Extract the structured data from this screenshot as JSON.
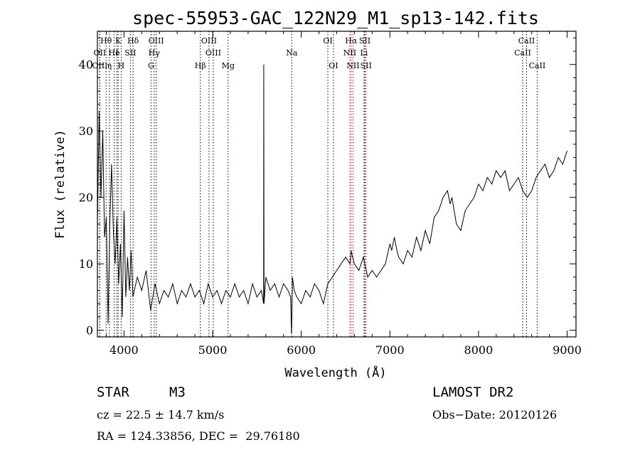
{
  "chart_data": {
    "type": "line",
    "title": "spec-55953-GAC_122N29_M1_sp13-142.fits",
    "xlabel": "Wavelength (Å)",
    "ylabel": "Flux (relative)",
    "xlim": [
      3700,
      9100
    ],
    "ylim": [
      -1,
      45
    ],
    "x_ticks": [
      4000,
      5000,
      6000,
      7000,
      8000,
      9000
    ],
    "y_ticks": [
      0,
      10,
      20,
      30,
      40
    ],
    "grid": false,
    "series": [
      {
        "x": [
          3700,
          3720,
          3740,
          3760,
          3780,
          3800,
          3820,
          3840,
          3860,
          3880,
          3900,
          3920,
          3940,
          3960,
          3980,
          4000,
          4020,
          4040,
          4060,
          4080,
          4100,
          4150,
          4200,
          4250,
          4300,
          4350,
          4400,
          4450,
          4500,
          4550,
          4600,
          4650,
          4700,
          4750,
          4800,
          4850,
          4900,
          4950,
          5000,
          5050,
          5100,
          5150,
          5200,
          5250,
          5300,
          5350,
          5400,
          5450,
          5500,
          5550,
          5575,
          5577,
          5580,
          5600,
          5650,
          5700,
          5750,
          5800,
          5850,
          5880,
          5890,
          5895,
          5900,
          5920,
          5950,
          6000,
          6050,
          6100,
          6150,
          6200,
          6250,
          6300,
          6350,
          6400,
          6450,
          6500,
          6550,
          6563,
          6580,
          6600,
          6650,
          6700,
          6750,
          6800,
          6850,
          6900,
          6950,
          7000,
          7020,
          7050,
          7080,
          7100,
          7150,
          7200,
          7250,
          7300,
          7350,
          7400,
          7450,
          7500,
          7550,
          7600,
          7650,
          7680,
          7700,
          7750,
          7800,
          7850,
          7900,
          7950,
          8000,
          8050,
          8100,
          8150,
          8200,
          8250,
          8300,
          8350,
          8400,
          8450,
          8500,
          8550,
          8600,
          8650,
          8700,
          8750,
          8800,
          8850,
          8900,
          8950,
          9000
        ],
        "y": [
          16,
          33,
          20,
          30,
          14,
          17,
          1,
          16,
          25,
          15,
          10,
          17,
          7,
          13,
          2,
          18,
          5,
          11,
          6,
          12,
          5,
          8,
          6,
          9,
          3,
          7,
          4,
          6,
          5,
          7,
          4,
          6,
          5,
          7,
          5,
          6,
          4,
          7,
          5,
          6,
          4,
          6,
          5,
          7,
          5,
          6,
          4,
          7,
          5,
          6,
          4,
          40,
          4,
          8,
          6,
          7,
          5,
          7,
          6,
          5,
          -0.5,
          3,
          8,
          6,
          5,
          4,
          6,
          5,
          7,
          6,
          4,
          7,
          8,
          9,
          10,
          11,
          10,
          12,
          11,
          10,
          9,
          11,
          8,
          9,
          8,
          9,
          10,
          13,
          12,
          14,
          12,
          11,
          10,
          12,
          11,
          14,
          12,
          15,
          13,
          17,
          18,
          20,
          21,
          19,
          20,
          16,
          15,
          18,
          19,
          20,
          22,
          21,
          23,
          22,
          24,
          23,
          24,
          21,
          22,
          23,
          21,
          20,
          21,
          23,
          24,
          25,
          23,
          24,
          26,
          25,
          27
        ]
      }
    ],
    "spectral_lines": [
      {
        "label": "Hθ",
        "x": 3798,
        "row": 1,
        "color": "#000000"
      },
      {
        "label": "K",
        "x": 3934,
        "row": 1,
        "color": "#000000"
      },
      {
        "label": "Hδ",
        "x": 4102,
        "row": 1,
        "color": "#000000"
      },
      {
        "label": "OIII",
        "x": 4363,
        "row": 1,
        "color": "#000000"
      },
      {
        "label": "OIII",
        "x": 4959,
        "row": 1,
        "color": "#000000"
      },
      {
        "label": "OI",
        "x": 6300,
        "row": 1,
        "color": "#000000"
      },
      {
        "label": "Hα",
        "x": 6563,
        "row": 1,
        "color": "#cc0000"
      },
      {
        "label": "SII",
        "x": 6717,
        "row": 1,
        "color": "#000000"
      },
      {
        "label": "CaII",
        "x": 8542,
        "row": 1,
        "color": "#000000"
      },
      {
        "label": "OII",
        "x": 3727,
        "row": 2,
        "color": "#000000"
      },
      {
        "label": "He",
        "x": 3889,
        "row": 2,
        "color": "#000000"
      },
      {
        "label": "I",
        "x": 3920,
        "row": 2,
        "color": "#000000"
      },
      {
        "label": "SII",
        "x": 4072,
        "row": 2,
        "color": "#000000"
      },
      {
        "label": "Hγ",
        "x": 4340,
        "row": 2,
        "color": "#000000"
      },
      {
        "label": "OIII",
        "x": 5007,
        "row": 2,
        "color": "#000000"
      },
      {
        "label": "Na",
        "x": 5893,
        "row": 2,
        "color": "#000000"
      },
      {
        "label": "NII",
        "x": 6548,
        "row": 2,
        "color": "#cc0000"
      },
      {
        "label": "Li",
        "x": 6708,
        "row": 2,
        "color": "#000000"
      },
      {
        "label": "CaII",
        "x": 8498,
        "row": 2,
        "color": "#000000"
      },
      {
        "label": "OIII",
        "x": 3727,
        "row": 3,
        "color": "#000000"
      },
      {
        "label": "η",
        "x": 3835,
        "row": 3,
        "color": "#000000"
      },
      {
        "label": "H",
        "x": 3968,
        "row": 3,
        "color": "#000000"
      },
      {
        "label": "G",
        "x": 4305,
        "row": 3,
        "color": "#000000"
      },
      {
        "label": "Hβ",
        "x": 4861,
        "row": 3,
        "color": "#000000"
      },
      {
        "label": "Mg",
        "x": 5175,
        "row": 3,
        "color": "#000000"
      },
      {
        "label": "OI",
        "x": 6363,
        "row": 3,
        "color": "#000000"
      },
      {
        "label": "NII",
        "x": 6584,
        "row": 3,
        "color": "#cc0000"
      },
      {
        "label": "SII",
        "x": 6731,
        "row": 3,
        "color": "#cc0000"
      },
      {
        "label": "CaII",
        "x": 8662,
        "row": 3,
        "color": "#000000"
      }
    ]
  },
  "info": {
    "class": "STAR",
    "subclass": "M3",
    "survey": "LAMOST DR2",
    "cz": "cz = 22.5 ± 14.7 km/s",
    "obs_date": "Obs−Date: 20120126",
    "coords": "RA = 124.33856, DEC =  29.76180"
  }
}
